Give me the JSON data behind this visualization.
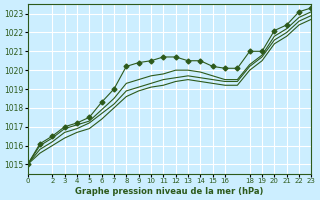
{
  "title": "Graphe pression niveau de la mer (hPa)",
  "bg_color": "#cceeff",
  "grid_color": "#ffffff",
  "line_color": "#2d5a1b",
  "xlim": [
    0,
    23
  ],
  "ylim": [
    1014.5,
    1023.5
  ],
  "yticks": [
    1015,
    1016,
    1017,
    1018,
    1019,
    1020,
    1021,
    1022,
    1023
  ],
  "xticks": [
    0,
    2,
    3,
    4,
    5,
    6,
    7,
    8,
    9,
    10,
    11,
    12,
    13,
    14,
    15,
    16,
    18,
    19,
    20,
    21,
    22,
    23
  ],
  "xtick_labels": [
    "0",
    "2",
    "3",
    "4",
    "5",
    "6",
    "7",
    "8",
    "9",
    "10",
    "11",
    "12",
    "13",
    "14",
    "15",
    "16",
    "18",
    "19",
    "20",
    "21",
    "22",
    "23"
  ],
  "series": [
    [
      1015.0,
      1016.1,
      1016.5,
      1017.0,
      1017.2,
      1017.5,
      1018.3,
      1019.0,
      1020.2,
      1020.4,
      1020.5,
      1020.7,
      1020.7,
      1020.5,
      1020.5,
      1020.2,
      1020.1,
      1020.1,
      1021.0,
      1021.0,
      1022.1,
      1022.4,
      1023.1,
      1023.3
    ],
    [
      1015.0,
      1016.0,
      1016.4,
      1016.9,
      1017.1,
      1017.3,
      1017.9,
      1018.5,
      1019.3,
      1019.5,
      1019.7,
      1019.8,
      1020.0,
      1020.0,
      1019.9,
      1019.7,
      1019.5,
      1019.5,
      1020.3,
      1020.8,
      1021.8,
      1022.2,
      1022.8,
      1023.1
    ],
    [
      1015.0,
      1015.8,
      1016.2,
      1016.7,
      1016.9,
      1017.2,
      1017.7,
      1018.2,
      1018.9,
      1019.1,
      1019.3,
      1019.5,
      1019.6,
      1019.7,
      1019.6,
      1019.5,
      1019.4,
      1019.4,
      1020.2,
      1020.7,
      1021.6,
      1022.0,
      1022.6,
      1022.9
    ],
    [
      1015.0,
      1015.6,
      1016.0,
      1016.4,
      1016.7,
      1016.9,
      1017.4,
      1018.0,
      1018.6,
      1018.9,
      1019.1,
      1019.2,
      1019.4,
      1019.5,
      1019.4,
      1019.3,
      1019.2,
      1019.2,
      1020.0,
      1020.5,
      1021.4,
      1021.8,
      1022.4,
      1022.7
    ]
  ]
}
